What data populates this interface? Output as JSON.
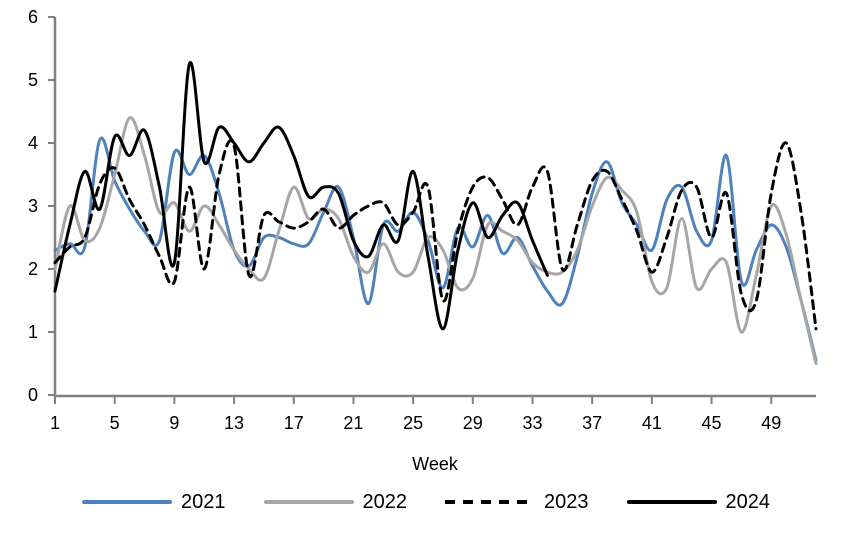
{
  "chart_data": {
    "type": "line",
    "title": "",
    "xlabel": "Week",
    "ylabel": "",
    "x_range": [
      1,
      52
    ],
    "ylim": [
      0,
      6
    ],
    "x_tick_labels": [
      "1",
      "5",
      "9",
      "13",
      "17",
      "21",
      "25",
      "29",
      "33",
      "37",
      "41",
      "45",
      "49"
    ],
    "x_tick_weeks": [
      1,
      5,
      9,
      13,
      17,
      21,
      25,
      29,
      33,
      37,
      41,
      45,
      49
    ],
    "y_tick_labels": [
      "0",
      "1",
      "2",
      "3",
      "4",
      "5",
      "6"
    ],
    "grid": "off",
    "axis_color": "#808080",
    "legend_position": "bottom",
    "series": [
      {
        "name": "2021",
        "color": "#4f81bd",
        "dash": "solid",
        "start_week": 1,
        "values": [
          2.3,
          2.4,
          2.35,
          4.05,
          3.4,
          2.95,
          2.6,
          2.45,
          3.85,
          3.5,
          3.8,
          3.2,
          2.3,
          2.05,
          2.5,
          2.5,
          2.4,
          2.4,
          2.9,
          3.3,
          2.5,
          1.45,
          2.7,
          2.6,
          2.9,
          2.45,
          1.7,
          2.65,
          2.35,
          2.85,
          2.25,
          2.5,
          2.05,
          1.65,
          1.45,
          2.2,
          3.2,
          3.7,
          3.05,
          2.7,
          2.3,
          3.1,
          3.3,
          2.6,
          2.45,
          3.8,
          1.8,
          2.3,
          2.7,
          2.35,
          1.5,
          0.55
        ]
      },
      {
        "name": "2022",
        "color": "#a6a6a6",
        "dash": "solid",
        "start_week": 1,
        "values": [
          2.0,
          3.0,
          2.45,
          2.65,
          3.5,
          4.4,
          3.8,
          2.9,
          3.05,
          2.6,
          3.0,
          2.7,
          2.3,
          2.0,
          1.85,
          2.6,
          3.3,
          2.8,
          2.95,
          2.8,
          2.2,
          1.95,
          2.4,
          1.95,
          1.95,
          2.5,
          2.3,
          1.7,
          1.85,
          2.7,
          2.6,
          2.45,
          2.1,
          1.95,
          1.95,
          2.3,
          3.0,
          3.45,
          3.25,
          2.9,
          1.8,
          1.7,
          2.8,
          1.7,
          2.0,
          2.1,
          1.0,
          1.9,
          3.0,
          2.55,
          1.5,
          0.5
        ]
      },
      {
        "name": "2023",
        "color": "#000000",
        "dash": "dashed",
        "start_week": 1,
        "values": [
          2.1,
          2.35,
          2.5,
          3.35,
          3.6,
          3.1,
          2.7,
          2.2,
          1.8,
          3.3,
          2.0,
          3.5,
          3.95,
          1.9,
          2.85,
          2.75,
          2.65,
          2.75,
          2.95,
          2.65,
          2.85,
          3.0,
          3.05,
          2.7,
          2.9,
          3.3,
          1.5,
          2.6,
          3.3,
          3.45,
          3.1,
          2.7,
          3.3,
          3.55,
          2.0,
          2.7,
          3.4,
          3.55,
          3.1,
          2.6,
          1.95,
          2.5,
          3.25,
          3.3,
          2.5,
          3.2,
          1.6,
          1.5,
          3.2,
          4.0,
          2.9,
          1.05
        ]
      },
      {
        "name": "2024",
        "color": "#000000",
        "dash": "solid",
        "start_week": 1,
        "values": [
          1.65,
          2.7,
          3.55,
          2.95,
          4.1,
          3.8,
          4.2,
          3.3,
          2.1,
          5.25,
          3.7,
          4.25,
          4.0,
          3.7,
          4.0,
          4.25,
          3.8,
          3.15,
          3.3,
          3.2,
          2.45,
          2.2,
          2.7,
          2.45,
          3.55,
          2.2,
          1.05,
          2.3,
          3.05,
          2.5,
          2.85,
          3.05,
          2.45,
          1.9
        ]
      }
    ]
  }
}
